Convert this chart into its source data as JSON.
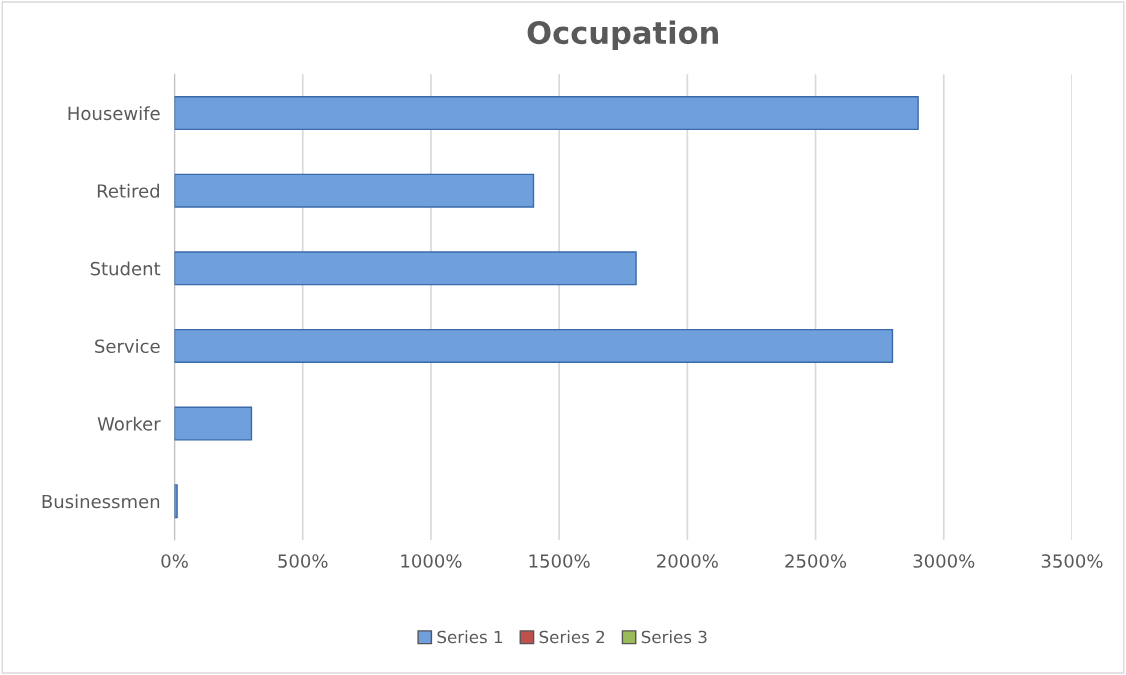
{
  "chart_data": {
    "type": "bar",
    "orientation": "horizontal",
    "title": "Occupation",
    "categories": [
      "Housewife",
      "Retired",
      "Student",
      "Service",
      "Worker",
      "Businessmen"
    ],
    "series": [
      {
        "name": "Series 1",
        "color": "#6f9fdc",
        "values": [
          2900,
          1400,
          1800,
          2800,
          300,
          10
        ]
      },
      {
        "name": "Series 2",
        "color": "#c0504d",
        "values": [
          null,
          null,
          null,
          null,
          null,
          null
        ]
      },
      {
        "name": "Series 3",
        "color": "#9bbb59",
        "values": [
          null,
          null,
          null,
          null,
          null,
          null
        ]
      }
    ],
    "xlim": [
      0,
      3500
    ],
    "xticks": [
      {
        "value": 0,
        "label": "0%"
      },
      {
        "value": 500,
        "label": "500%"
      },
      {
        "value": 1000,
        "label": "1000%"
      },
      {
        "value": 1500,
        "label": "1500%"
      },
      {
        "value": 2000,
        "label": "2000%"
      },
      {
        "value": 2500,
        "label": "2500%"
      },
      {
        "value": 3000,
        "label": "3000%"
      },
      {
        "value": 3500,
        "label": "3500%"
      }
    ],
    "grid": "x",
    "legend": "bottom"
  }
}
